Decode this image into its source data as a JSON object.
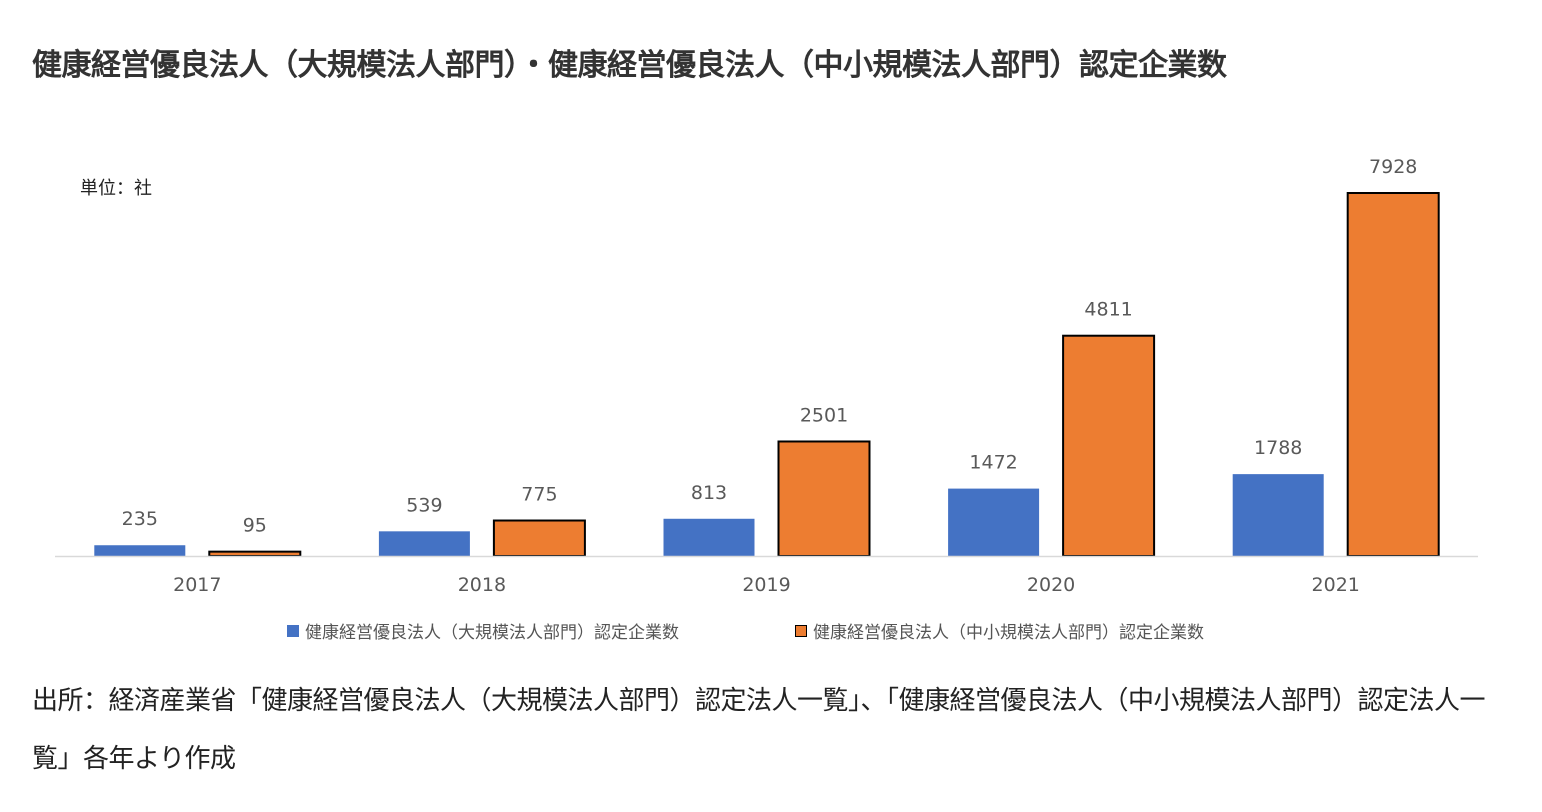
{
  "title": "健康経営優良法人（大規模法人部門）・健康経営優良法人（中小規模法人部門）認定企業数",
  "unit_label": "単位：社",
  "colors": {
    "large": "#4472C4",
    "small": "#ED7D31",
    "small_border": "#000000",
    "axis": "#D9D9D9",
    "label": "#595959"
  },
  "chart_data": {
    "type": "bar",
    "categories": [
      "2017",
      "2018",
      "2019",
      "2020",
      "2021"
    ],
    "series": [
      {
        "name": "健康経営優良法人（大規模法人部門）認定企業数",
        "values": [
          235,
          539,
          813,
          1472,
          1788
        ]
      },
      {
        "name": "健康経営優良法人（中小規模法人部門）認定企業数",
        "values": [
          95,
          775,
          2501,
          4811,
          7928
        ]
      }
    ],
    "ylim": [
      0,
      8000
    ],
    "grid": false,
    "legend_position": "bottom",
    "data_labels": true
  },
  "source_note": "出所：経済産業省「健康経営優良法人（大規模法人部門）認定法人一覧」、「健康経営優良法人（中小規模法人部門）認定法人一覧」各年より作成"
}
